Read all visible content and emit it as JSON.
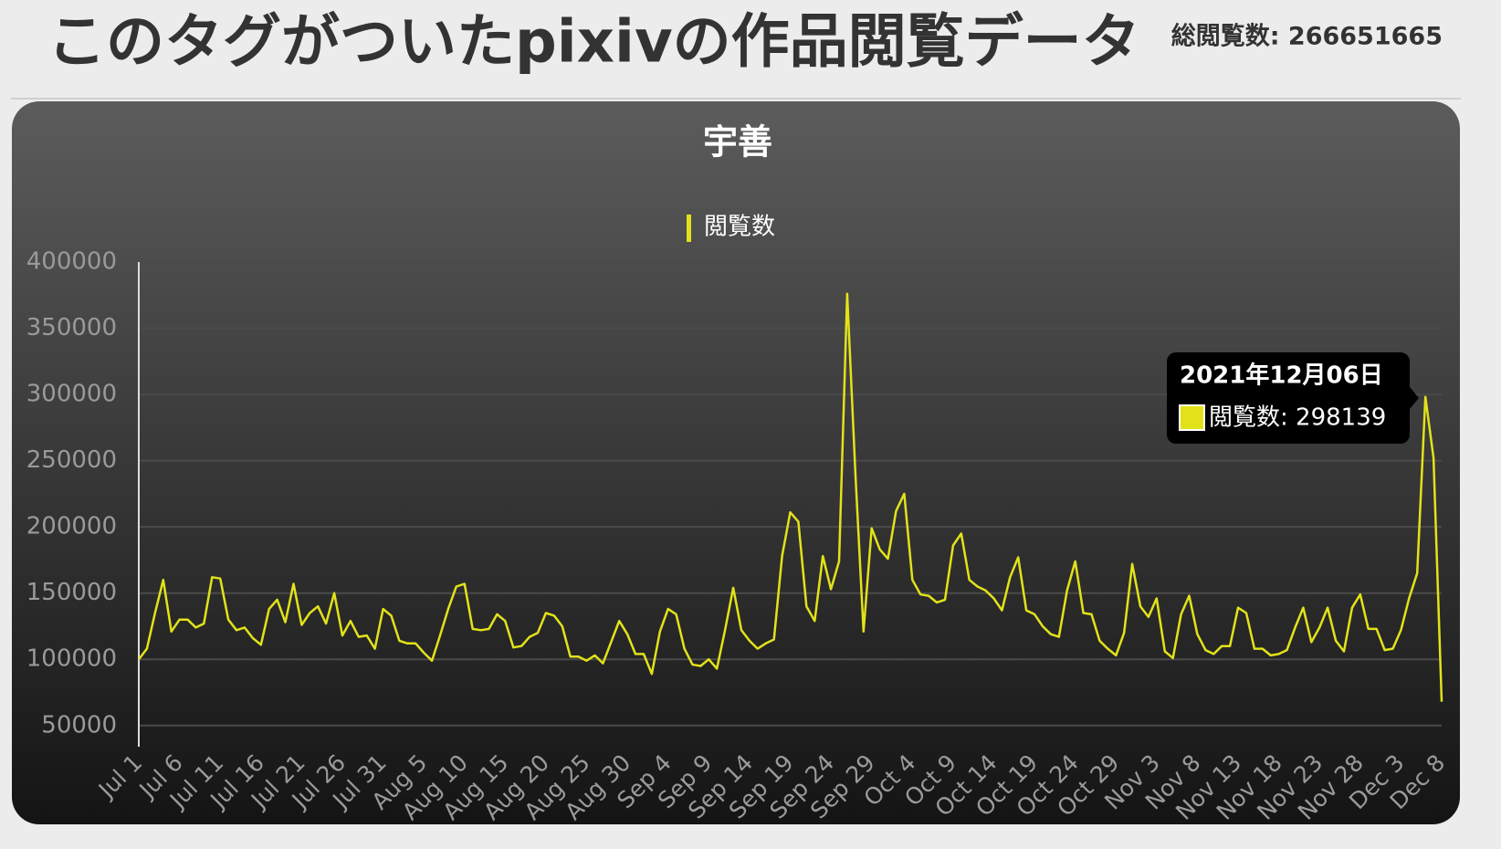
{
  "header": {
    "title": "このタグがついたpixivの作品閲覧データ",
    "total": "総閲覧数: 266651665"
  },
  "chart_data": {
    "type": "line",
    "title": "宇善",
    "categories": [
      "Jul 1",
      null,
      null,
      null,
      null,
      "Jul 6",
      null,
      null,
      null,
      null,
      "Jul 11",
      null,
      null,
      null,
      null,
      "Jul 16",
      null,
      null,
      null,
      null,
      "Jul 21",
      null,
      null,
      null,
      null,
      "Jul 26",
      null,
      null,
      null,
      null,
      "Jul 31",
      null,
      null,
      null,
      null,
      "Aug 5",
      null,
      null,
      null,
      null,
      "Aug 10",
      null,
      null,
      null,
      null,
      "Aug 15",
      null,
      null,
      null,
      null,
      "Aug 20",
      null,
      null,
      null,
      null,
      "Aug 25",
      null,
      null,
      null,
      null,
      "Aug 30",
      null,
      null,
      null,
      null,
      "Sep 4",
      null,
      null,
      null,
      null,
      "Sep 9",
      null,
      null,
      null,
      null,
      "Sep 14",
      null,
      null,
      null,
      null,
      "Sep 19",
      null,
      null,
      null,
      null,
      "Sep 24",
      null,
      null,
      null,
      null,
      "Sep 29",
      null,
      null,
      null,
      null,
      "Oct 4",
      null,
      null,
      null,
      null,
      "Oct 9",
      null,
      null,
      null,
      null,
      "Oct 14",
      null,
      null,
      null,
      null,
      "Oct 19",
      null,
      null,
      null,
      null,
      "Oct 24",
      null,
      null,
      null,
      null,
      "Oct 29",
      null,
      null,
      null,
      null,
      "Nov 3",
      null,
      null,
      null,
      null,
      "Nov 8",
      null,
      null,
      null,
      null,
      "Nov 13",
      null,
      null,
      null,
      null,
      "Nov 18",
      null,
      null,
      null,
      null,
      "Nov 23",
      null,
      null,
      null,
      null,
      "Nov 28",
      null,
      null,
      null,
      null,
      "Dec 3",
      null,
      null,
      null,
      null,
      "Dec 8"
    ],
    "series": [
      {
        "name": "閲覧数",
        "color": "#e2e21a",
        "values": [
          100000,
          108000,
          135000,
          160000,
          121000,
          130000,
          130000,
          124000,
          127000,
          162000,
          161000,
          130000,
          122000,
          124000,
          116000,
          111000,
          138000,
          145000,
          128000,
          157000,
          126000,
          135000,
          140000,
          127000,
          150000,
          118000,
          129000,
          117000,
          118000,
          108000,
          138000,
          133000,
          114000,
          112000,
          112000,
          105000,
          99000,
          118000,
          138000,
          155000,
          157000,
          123000,
          122000,
          123000,
          134000,
          129000,
          109000,
          110000,
          117000,
          120000,
          135000,
          133000,
          125000,
          102000,
          102000,
          99000,
          103000,
          97000,
          113000,
          129000,
          119000,
          104000,
          104000,
          89000,
          121000,
          138000,
          134000,
          108000,
          96000,
          95000,
          100000,
          93000,
          122000,
          154000,
          122000,
          114000,
          108000,
          112000,
          115000,
          178000,
          211000,
          204000,
          140000,
          129000,
          178000,
          153000,
          174000,
          376000,
          240000,
          121000,
          199000,
          183000,
          176000,
          212000,
          225000,
          160000,
          149000,
          148000,
          143000,
          145000,
          186000,
          195000,
          160000,
          155000,
          152000,
          146000,
          137000,
          162000,
          177000,
          137000,
          134000,
          125000,
          119000,
          117000,
          152000,
          174000,
          135000,
          134000,
          114000,
          108000,
          103000,
          120000,
          172000,
          140000,
          132000,
          146000,
          106000,
          101000,
          134000,
          148000,
          119000,
          107000,
          104000,
          110000,
          110000,
          139000,
          135000,
          108000,
          108000,
          103000,
          104000,
          107000,
          124000,
          139000,
          113000,
          124000,
          139000,
          114000,
          106000,
          139000,
          149000,
          123000,
          123000,
          107000,
          108000,
          122000,
          146000,
          165000,
          298139,
          252000,
          68000
        ]
      }
    ],
    "ylim": [
      34000,
      400000
    ],
    "yticks": [
      50000,
      100000,
      150000,
      200000,
      250000,
      300000,
      350000,
      400000
    ],
    "grid": true,
    "tooltip": {
      "title": "2021年12月06日",
      "label": "閲覧数: 298139"
    }
  }
}
